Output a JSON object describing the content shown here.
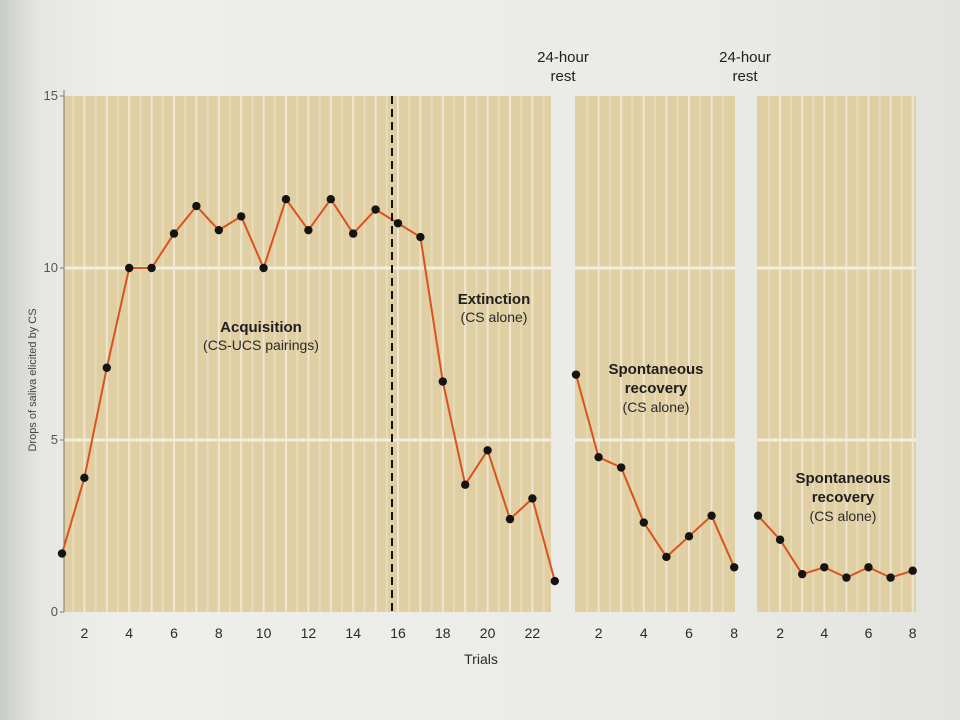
{
  "chart_data": {
    "type": "line",
    "ylabel": "Drops of saliva elicited by CS",
    "xlabel": "Trials",
    "ylim": [
      0,
      15
    ],
    "yticks": [
      0,
      5,
      10,
      15
    ],
    "grid": true,
    "divider_after_trial": 16,
    "rest_labels": [
      {
        "line1": "24-hour",
        "line2": "rest"
      },
      {
        "line1": "24-hour",
        "line2": "rest"
      }
    ],
    "panels": [
      {
        "trials": [
          1,
          2,
          3,
          4,
          5,
          6,
          7,
          8,
          9,
          10,
          11,
          12,
          13,
          14,
          15,
          16,
          17,
          18,
          19,
          20,
          21,
          22,
          23
        ],
        "xticks": [
          2,
          4,
          6,
          8,
          10,
          12,
          14,
          16,
          18,
          20,
          22
        ],
        "values": [
          1.7,
          3.9,
          7.1,
          10,
          10,
          11,
          11.8,
          11.1,
          11.5,
          10,
          12,
          11.1,
          12,
          11,
          11.7,
          11.3,
          10.9,
          6.7,
          3.7,
          4.7,
          2.7,
          3.3,
          0.9
        ],
        "annotations": [
          {
            "bold": "Acquisition",
            "normal": "(CS-UCS pairings)"
          },
          {
            "bold": "Extinction",
            "normal": "(CS alone)"
          }
        ]
      },
      {
        "trials": [
          1,
          2,
          3,
          4,
          5,
          6,
          7,
          8
        ],
        "xticks": [
          2,
          4,
          6,
          8
        ],
        "values": [
          6.9,
          4.5,
          4.2,
          2.6,
          1.6,
          2.2,
          2.8,
          1.3
        ],
        "annotations": [
          {
            "bold1": "Spontaneous",
            "bold2": "recovery",
            "normal": "(CS alone)"
          }
        ]
      },
      {
        "trials": [
          1,
          2,
          3,
          4,
          5,
          6,
          7,
          8
        ],
        "xticks": [
          2,
          4,
          6,
          8
        ],
        "values": [
          2.8,
          2.1,
          1.1,
          1.3,
          1.0,
          1.3,
          1.0,
          1.2
        ],
        "annotations": [
          {
            "bold1": "Spontaneous",
            "bold2": "recovery",
            "normal": "(CS alone)"
          }
        ]
      }
    ]
  }
}
